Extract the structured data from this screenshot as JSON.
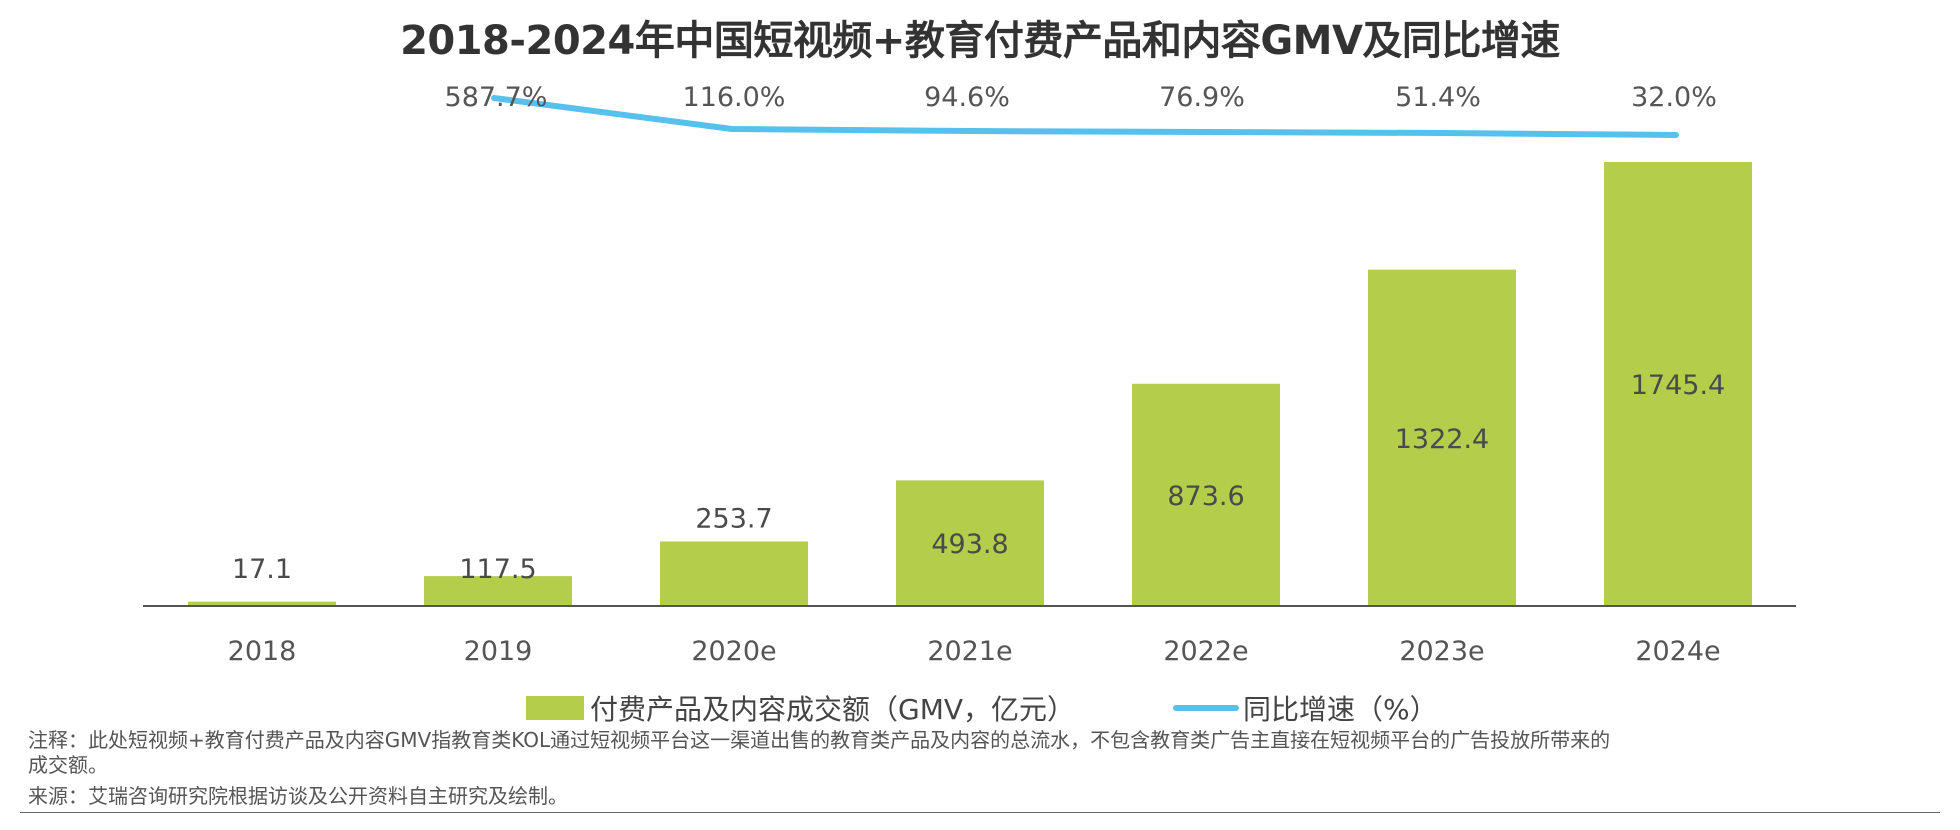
{
  "title": "2018-2024年中国短视频+教育付费产品和内容GMV及同比增速",
  "chart_data": {
    "type": "bar",
    "categories": [
      "2018",
      "2019",
      "2020e",
      "2021e",
      "2022e",
      "2023e",
      "2024e"
    ],
    "series": [
      {
        "name": "付费产品及内容成交额（GMV，亿元）",
        "type": "bar",
        "values": [
          17.1,
          117.5,
          253.7,
          493.8,
          873.6,
          1322.4,
          1745.4
        ],
        "labels": [
          "17.1",
          "117.5",
          "253.7",
          "493.8",
          "873.6",
          "1322.4",
          "1745.4"
        ]
      },
      {
        "name": "同比增速（%）",
        "type": "line",
        "values": [
          587.7,
          116.0,
          94.6,
          76.9,
          51.4,
          32.0
        ],
        "labels": [
          "587.7%",
          "116.0%",
          "94.6%",
          "76.9%",
          "51.4%",
          "32.0%"
        ],
        "x": [
          "2019",
          "2020e",
          "2021e",
          "2022e",
          "2023e",
          "2024e"
        ]
      }
    ],
    "ylim": [
      0,
      1745.4
    ],
    "grid": false,
    "legend_position": "bottom",
    "colors": {
      "bar": "#b4cd4b",
      "line": "#56c1ec",
      "axis": "#555555"
    }
  },
  "notes": {
    "note_line1": "注释：此处短视频+教育付费产品及内容GMV指教育类KOL通过短视频平台这一渠道出售的教育类产品及内容的总流水，不包含教育类广告主直接在短视频平台的广告投放所带来的",
    "note_line2": "成交额。",
    "source": "来源：艾瑞咨询研究院根据访谈及公开资料自主研究及绘制。"
  }
}
